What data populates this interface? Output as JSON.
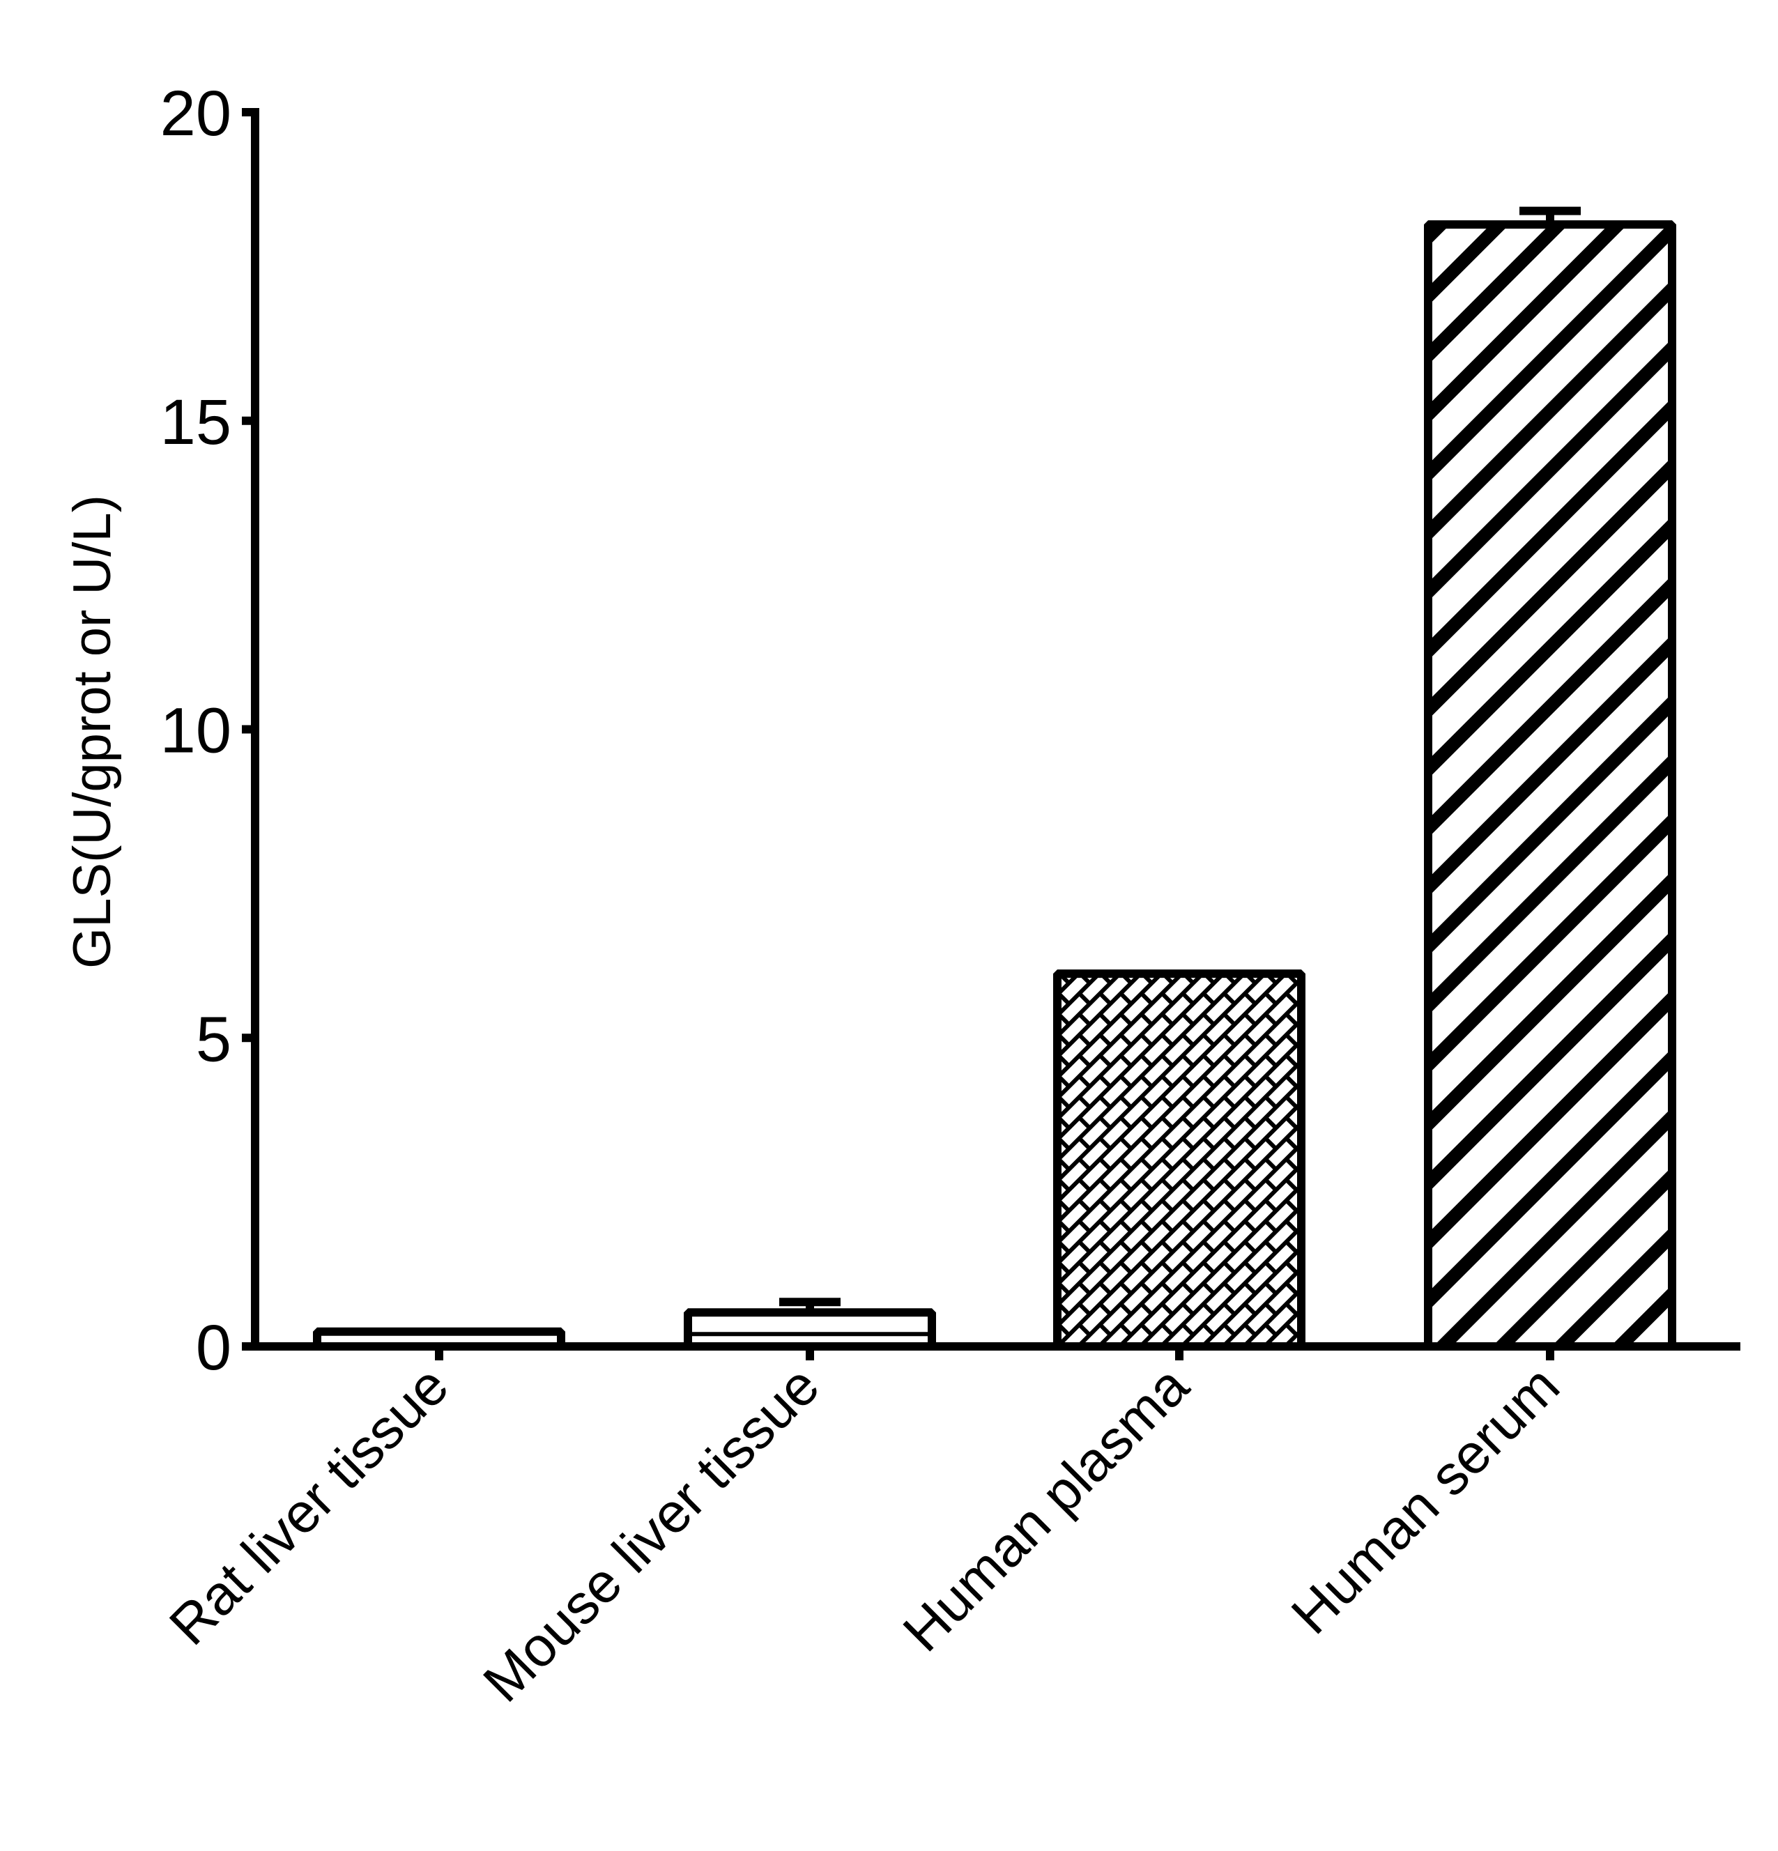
{
  "chart_data": {
    "type": "bar",
    "title": "",
    "xlabel": "",
    "ylabel": "GLS(U/gprot or U/L)",
    "categories": [
      "Rat liver tissue",
      "Mouse liver tissue",
      "Human plasma",
      "Human serum"
    ],
    "values": [
      0.24,
      0.55,
      6.04,
      18.18
    ],
    "error_bars_upper": [
      0.25,
      0.72,
      6.04,
      18.4
    ],
    "fill_patterns": [
      "none",
      "none-with-inner-line",
      "diagonal-brick",
      "diagonal-stripes"
    ],
    "ylim": [
      0,
      20
    ],
    "yticks": [
      0,
      5,
      10,
      15,
      20
    ],
    "grid": false,
    "legend": null,
    "x_tick_label_rotation": -45,
    "colors": {
      "stroke": "#000000",
      "fill": "#ffffff"
    }
  }
}
